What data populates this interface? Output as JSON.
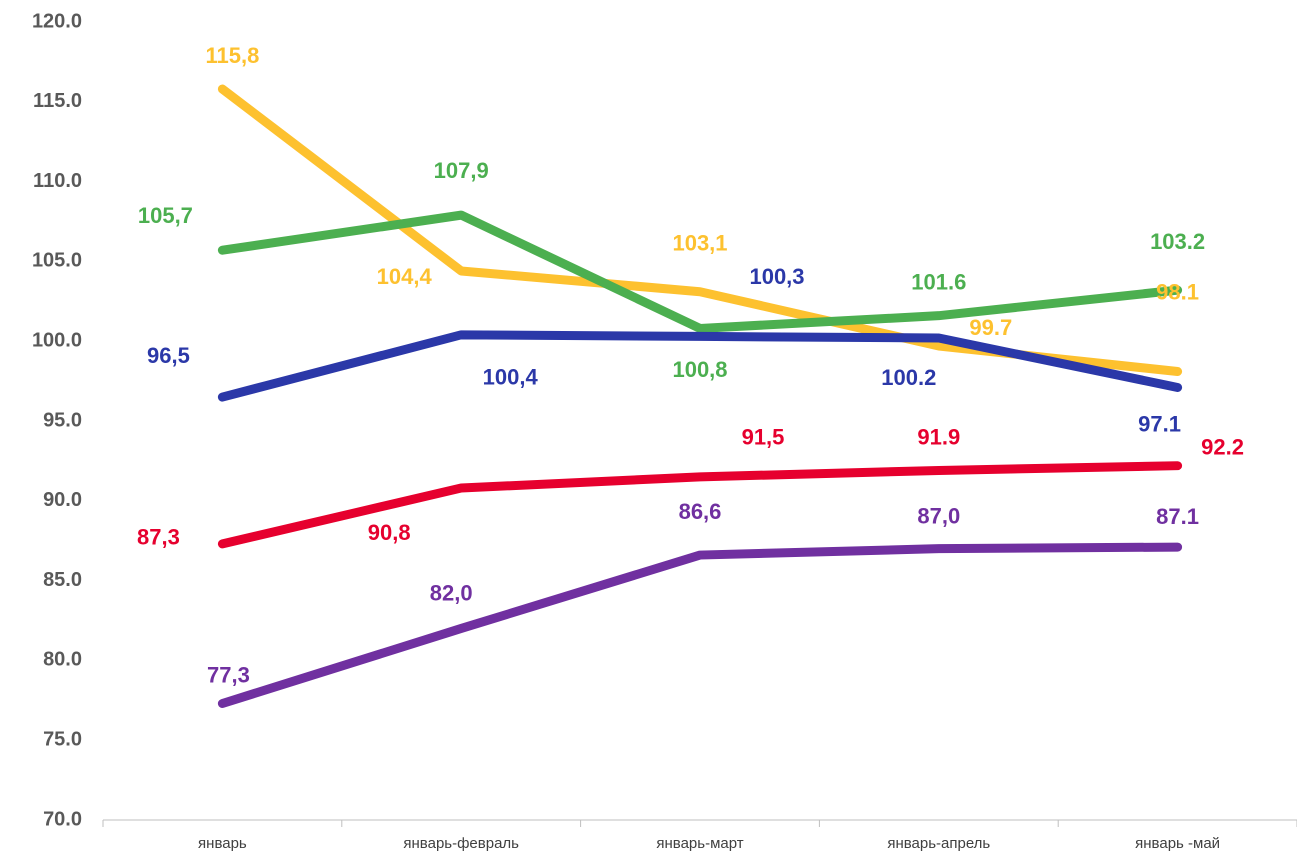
{
  "chart_data": {
    "type": "line",
    "categories": [
      "январь",
      "январь-февраль",
      "январь-март",
      "январь-апрель",
      "январь -май"
    ],
    "series": [
      {
        "color": "#fdc12f",
        "values": [
          115.8,
          104.4,
          103.1,
          99.7,
          98.1
        ],
        "value_labels": [
          "115,8",
          "104,4",
          "103,1",
          "99.7",
          "98.1"
        ]
      },
      {
        "color": "#4caf50",
        "values": [
          105.7,
          107.9,
          100.8,
          101.6,
          103.2
        ],
        "value_labels": [
          "105,7",
          "107,9",
          "100,8",
          "101.6",
          "103.2"
        ]
      },
      {
        "color": "#2b38a8",
        "values": [
          96.5,
          100.4,
          100.3,
          100.2,
          97.1
        ],
        "value_labels": [
          "96,5",
          "100,4",
          "100,3",
          "100.2",
          "97.1"
        ]
      },
      {
        "color": "#e6002e",
        "values": [
          87.3,
          90.8,
          91.5,
          91.9,
          92.2
        ],
        "value_labels": [
          "87,3",
          "90,8",
          "91,5",
          "91.9",
          "92.2"
        ]
      },
      {
        "color": "#7030a0",
        "values": [
          77.3,
          82.0,
          86.6,
          87.0,
          87.1
        ],
        "value_labels": [
          "77,3",
          "82,0",
          "86,6",
          "87,0",
          "87.1"
        ]
      }
    ],
    "ylim": [
      70,
      120
    ],
    "yticks": [
      {
        "value": 70,
        "label": "70.0"
      },
      {
        "value": 75,
        "label": "75.0"
      },
      {
        "value": 80,
        "label": "80.0"
      },
      {
        "value": 85,
        "label": "85.0"
      },
      {
        "value": 90,
        "label": "90.0"
      },
      {
        "value": 95,
        "label": "95.0"
      },
      {
        "value": 100,
        "label": "100.0"
      },
      {
        "value": 105,
        "label": "105.0"
      },
      {
        "value": 110,
        "label": "110.0"
      },
      {
        "value": 115,
        "label": "115.0"
      },
      {
        "value": 120,
        "label": "120.0"
      }
    ],
    "grid": false
  }
}
